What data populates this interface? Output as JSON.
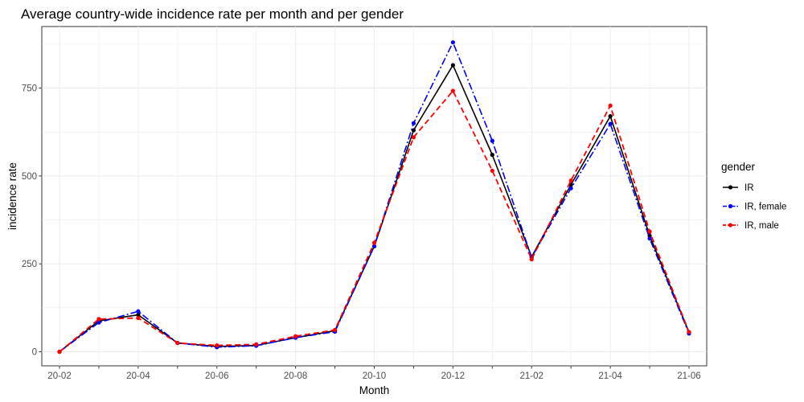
{
  "chart_data": {
    "type": "line",
    "title": "Average country-wide incidence rate per month and per gender",
    "xlabel": "Month",
    "ylabel": "incidence rate",
    "x": [
      "20-02",
      "20-03",
      "20-04",
      "20-05",
      "20-06",
      "20-07",
      "20-08",
      "20-09",
      "20-10",
      "20-11",
      "20-12",
      "21-01",
      "21-02",
      "21-03",
      "21-04",
      "21-05",
      "21-06"
    ],
    "x_tick_labels": [
      "20-02",
      "20-04",
      "20-06",
      "20-08",
      "20-10",
      "20-12",
      "21-02",
      "21-04",
      "21-06"
    ],
    "y_ticks": [
      0,
      250,
      500,
      750
    ],
    "ylim": [
      -40,
      925
    ],
    "grid": true,
    "legend": {
      "title": "gender",
      "position": "right"
    },
    "series": [
      {
        "name": "IR",
        "color": "#000000",
        "dash": "solid",
        "width": 1.6,
        "values": [
          0,
          88,
          105,
          25,
          15,
          18,
          40,
          60,
          300,
          630,
          815,
          560,
          270,
          475,
          670,
          330,
          55
        ]
      },
      {
        "name": "IR, female",
        "color": "#0000ff",
        "dash": "dashdot",
        "width": 1.6,
        "values": [
          0,
          83,
          115,
          25,
          13,
          17,
          40,
          57,
          300,
          650,
          880,
          600,
          268,
          465,
          648,
          322,
          52
        ]
      },
      {
        "name": "IR, male",
        "color": "#ff0000",
        "dash": "dashed",
        "width": 1.8,
        "values": [
          0,
          93,
          96,
          25,
          18,
          21,
          44,
          62,
          310,
          610,
          742,
          515,
          263,
          487,
          700,
          342,
          56
        ]
      }
    ]
  }
}
